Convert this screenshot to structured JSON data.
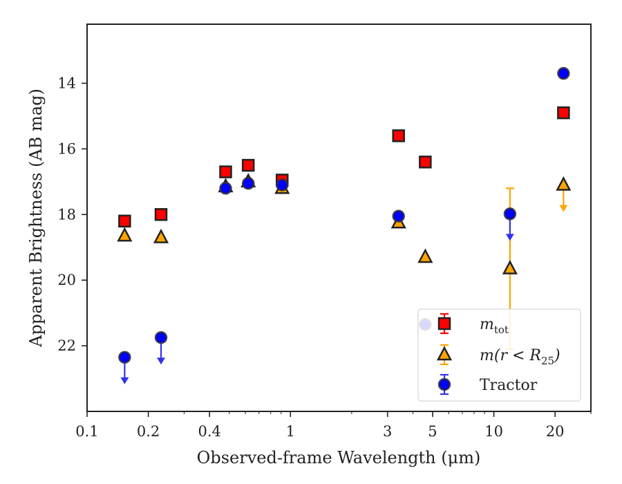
{
  "chart_data": {
    "type": "scatter",
    "title": "",
    "xlabel": "Observed-frame Wavelength (μm)",
    "ylabel": "Apparent Brightness (AB mag)",
    "xscale": "log",
    "yaxis_inverted": true,
    "xlim": [
      0.1,
      30
    ],
    "ylim": [
      24.0,
      12.2
    ],
    "x_ticks": [
      {
        "value": 0.1,
        "label": "0.1"
      },
      {
        "value": 0.2,
        "label": "0.2"
      },
      {
        "value": 0.4,
        "label": "0.4"
      },
      {
        "value": 1,
        "label": "1"
      },
      {
        "value": 3,
        "label": "3"
      },
      {
        "value": 5,
        "label": "5"
      },
      {
        "value": 10,
        "label": "10"
      },
      {
        "value": 20,
        "label": "20"
      }
    ],
    "y_ticks": [
      {
        "value": 14,
        "label": "14"
      },
      {
        "value": 16,
        "label": "16"
      },
      {
        "value": 18,
        "label": "18"
      },
      {
        "value": 20,
        "label": "20"
      },
      {
        "value": 22,
        "label": "22"
      }
    ],
    "grid": false,
    "legend_position": "lower-right",
    "series": [
      {
        "name": "m_tot",
        "label_main": "m",
        "label_sub": "tot",
        "marker": "square",
        "color": "#ff0000",
        "edge": "#222222",
        "points": [
          {
            "x": 0.153,
            "y": 18.2
          },
          {
            "x": 0.231,
            "y": 18.0
          },
          {
            "x": 0.48,
            "y": 16.7
          },
          {
            "x": 0.62,
            "y": 16.5
          },
          {
            "x": 0.91,
            "y": 16.95
          },
          {
            "x": 3.4,
            "y": 15.6
          },
          {
            "x": 4.6,
            "y": 16.4
          },
          {
            "x": 22,
            "y": 14.9
          }
        ]
      },
      {
        "name": "m(r < R25)",
        "label_main": "m(r < R",
        "label_sub": "25",
        "label_tail": ")",
        "marker": "triangle",
        "color": "#ffa500",
        "edge": "#222222",
        "points": [
          {
            "x": 0.153,
            "y": 18.65
          },
          {
            "x": 0.231,
            "y": 18.7
          },
          {
            "x": 0.48,
            "y": 17.15
          },
          {
            "x": 0.62,
            "y": 17.0
          },
          {
            "x": 0.91,
            "y": 17.2
          },
          {
            "x": 3.4,
            "y": 18.25
          },
          {
            "x": 4.6,
            "y": 19.3
          },
          {
            "x": 12,
            "y": 19.65,
            "err": [
              17.2,
              22.1
            ]
          },
          {
            "x": 22,
            "y": 17.1,
            "upper_limit": true
          }
        ]
      },
      {
        "name": "Tractor",
        "label_main": "Tractor",
        "marker": "circle",
        "color": "#0000ff",
        "edge": "#333333",
        "points": [
          {
            "x": 0.153,
            "y": 22.35,
            "upper_limit": true
          },
          {
            "x": 0.231,
            "y": 21.75,
            "upper_limit": true
          },
          {
            "x": 0.48,
            "y": 17.2
          },
          {
            "x": 0.62,
            "y": 17.05
          },
          {
            "x": 0.91,
            "y": 17.1
          },
          {
            "x": 3.4,
            "y": 18.05
          },
          {
            "x": 4.6,
            "y": 21.35
          },
          {
            "x": 12,
            "y": 17.98,
            "upper_limit": true
          },
          {
            "x": 22,
            "y": 13.7
          }
        ]
      }
    ]
  }
}
